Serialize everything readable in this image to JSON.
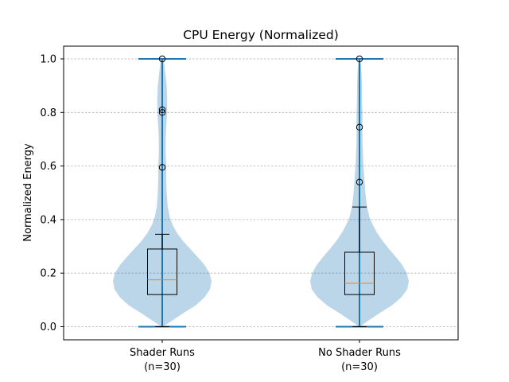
{
  "chart_data": {
    "type": "violin",
    "title": "CPU Energy (Normalized)",
    "xlabel": "",
    "ylabel": "Normalized Energy",
    "ylim": [
      -0.05,
      1.05
    ],
    "yticks": [
      "0.0",
      "0.2",
      "0.4",
      "0.6",
      "0.8",
      "1.0"
    ],
    "grid": "y-dashed",
    "colors": {
      "violin_fill": "#1f77b4",
      "violin_line": "#1f77b4",
      "median": "#ff7f0e",
      "box": "#000000",
      "grid": "#b0b0b0"
    },
    "series": [
      {
        "name": "Shader Runs",
        "count_label": "(n=30)",
        "violin_min": 0.0,
        "violin_max": 1.0,
        "box": {
          "q1": 0.12,
          "median": 0.175,
          "q3": 0.29,
          "whisker_low": 0.0,
          "whisker_high": 0.345
        },
        "outliers": [
          1.0,
          0.81,
          0.8,
          0.595
        ],
        "density": [
          [
            0.0,
            0.01
          ],
          [
            0.02,
            0.18
          ],
          [
            0.05,
            0.42
          ],
          [
            0.08,
            0.68
          ],
          [
            0.11,
            0.86
          ],
          [
            0.14,
            0.97
          ],
          [
            0.17,
            1.0
          ],
          [
            0.2,
            0.96
          ],
          [
            0.23,
            0.86
          ],
          [
            0.26,
            0.72
          ],
          [
            0.29,
            0.57
          ],
          [
            0.32,
            0.42
          ],
          [
            0.35,
            0.3
          ],
          [
            0.38,
            0.21
          ],
          [
            0.41,
            0.15
          ],
          [
            0.45,
            0.11
          ],
          [
            0.5,
            0.09
          ],
          [
            0.55,
            0.08
          ],
          [
            0.6,
            0.08
          ],
          [
            0.65,
            0.07
          ],
          [
            0.7,
            0.07
          ],
          [
            0.75,
            0.08
          ],
          [
            0.8,
            0.1
          ],
          [
            0.85,
            0.1
          ],
          [
            0.9,
            0.09
          ],
          [
            0.95,
            0.06
          ],
          [
            1.0,
            0.03
          ]
        ]
      },
      {
        "name": "No Shader Runs",
        "count_label": "(n=30)",
        "violin_min": 0.0,
        "violin_max": 1.0,
        "box": {
          "q1": 0.12,
          "median": 0.162,
          "q3": 0.278,
          "whisker_low": 0.0,
          "whisker_high": 0.447
        },
        "outliers": [
          1.0,
          0.745,
          0.54
        ],
        "density": [
          [
            0.0,
            0.01
          ],
          [
            0.02,
            0.16
          ],
          [
            0.05,
            0.4
          ],
          [
            0.08,
            0.66
          ],
          [
            0.11,
            0.85
          ],
          [
            0.14,
            0.97
          ],
          [
            0.17,
            1.0
          ],
          [
            0.2,
            0.96
          ],
          [
            0.23,
            0.87
          ],
          [
            0.26,
            0.74
          ],
          [
            0.29,
            0.6
          ],
          [
            0.32,
            0.47
          ],
          [
            0.35,
            0.36
          ],
          [
            0.38,
            0.27
          ],
          [
            0.41,
            0.2
          ],
          [
            0.45,
            0.15
          ],
          [
            0.5,
            0.12
          ],
          [
            0.55,
            0.1
          ],
          [
            0.6,
            0.08
          ],
          [
            0.65,
            0.07
          ],
          [
            0.7,
            0.06
          ],
          [
            0.75,
            0.06
          ],
          [
            0.8,
            0.06
          ],
          [
            0.85,
            0.05
          ],
          [
            0.9,
            0.05
          ],
          [
            0.95,
            0.04
          ],
          [
            1.0,
            0.02
          ]
        ]
      }
    ]
  }
}
